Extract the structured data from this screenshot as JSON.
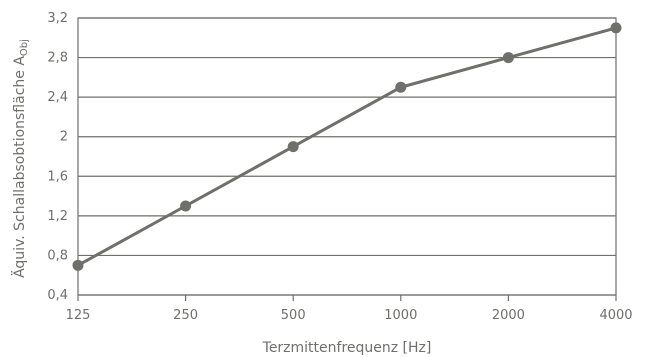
{
  "chart_data": {
    "type": "line",
    "categories": [
      "125",
      "250",
      "500",
      "1000",
      "2000",
      "4000"
    ],
    "series": [
      {
        "values": [
          0.7,
          1.3,
          1.9,
          2.5,
          2.8,
          3.1
        ]
      }
    ],
    "xlabel": "Terzmittenfrequenz [Hz]",
    "ylabel": "Äquiv. Schallabsobtionsfläche A",
    "ylabel_subscript": "Obj",
    "ylim": [
      0.4,
      3.2
    ],
    "yticks": [
      0.4,
      0.8,
      1.2,
      1.6,
      2,
      2.4,
      2.8,
      3.2
    ],
    "ytick_labels": [
      "0,4",
      "0,8",
      "1,2",
      "1,6",
      "2",
      "2,4",
      "2,8",
      "3,2"
    ],
    "grid": true,
    "colors": {
      "line": "#6f6f6c",
      "marker": "#6f6f6c",
      "grid": "#6f6f6c",
      "text": "#6f6f6c"
    }
  }
}
